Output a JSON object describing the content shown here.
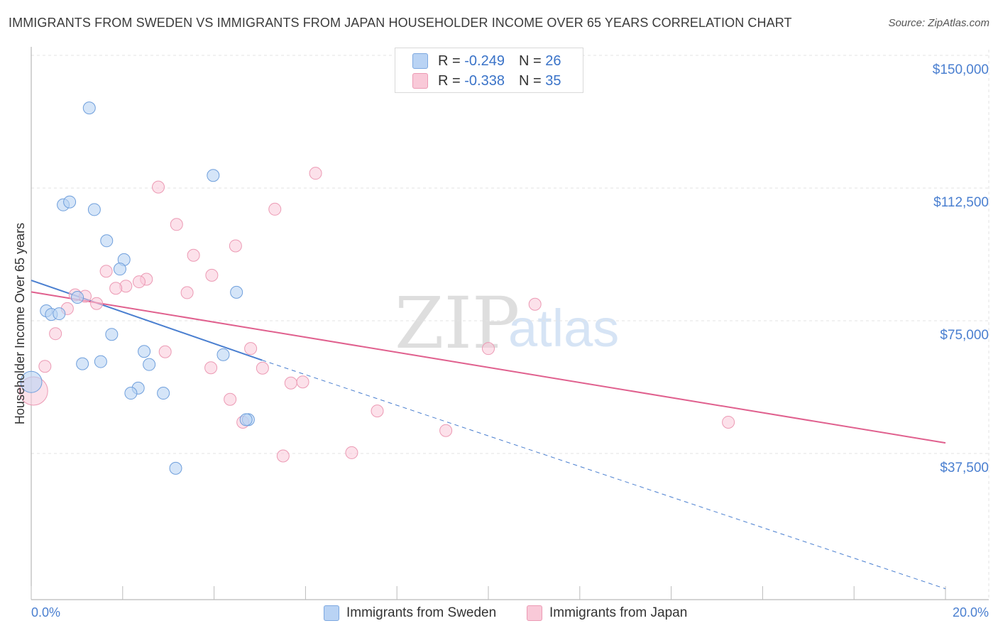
{
  "header": {
    "title": "IMMIGRANTS FROM SWEDEN VS IMMIGRANTS FROM JAPAN HOUSEHOLDER INCOME OVER 65 YEARS CORRELATION CHART",
    "source": "Source: ZipAtlas.com"
  },
  "watermark": {
    "zip": "ZIP",
    "atlas": "atlas"
  },
  "legend": {
    "sweden": {
      "r_label": "R =",
      "r_value": "-0.249",
      "n_label": "N =",
      "n_value": "26"
    },
    "japan": {
      "r_label": "R =",
      "r_value": "-0.338",
      "n_label": "N =",
      "n_value": "35"
    }
  },
  "chart_data": {
    "type": "scatter",
    "title": "IMMIGRANTS FROM SWEDEN VS IMMIGRANTS FROM JAPAN HOUSEHOLDER INCOME OVER 65 YEARS CORRELATION CHART",
    "xlabel": "",
    "ylabel": "Householder Income Over 65 years",
    "xlim": [
      0,
      20
    ],
    "ylim": [
      0,
      155000
    ],
    "x_tick_labels": [
      "0.0%",
      "20.0%"
    ],
    "y_ticks": [
      37500,
      75000,
      112500,
      150000
    ],
    "y_tick_labels": [
      "$37,500",
      "$75,000",
      "$112,500",
      "$150,000"
    ],
    "colors": {
      "sweden": "#4a7fd0",
      "sweden_fill": "#b9d3f4",
      "japan": "#e0608e",
      "japan_fill": "#f9c9d8",
      "axis_text": "#4a7fd0"
    },
    "series": [
      {
        "name": "Immigrants from Sweden",
        "points": [
          [
            1.27,
            135500
          ],
          [
            0.7,
            108800
          ],
          [
            0.84,
            109600
          ],
          [
            1.38,
            107500
          ],
          [
            1.65,
            98900
          ],
          [
            2.03,
            93700
          ],
          [
            1.94,
            91100
          ],
          [
            3.98,
            116900
          ],
          [
            4.49,
            84700
          ],
          [
            1.01,
            83300
          ],
          [
            0.33,
            79600
          ],
          [
            0.44,
            78600
          ],
          [
            0.61,
            78800
          ],
          [
            1.76,
            73100
          ],
          [
            2.47,
            68400
          ],
          [
            2.58,
            64800
          ],
          [
            1.12,
            65000
          ],
          [
            1.52,
            65600
          ],
          [
            4.2,
            67500
          ],
          [
            2.34,
            58300
          ],
          [
            2.18,
            56900
          ],
          [
            2.89,
            56900
          ],
          [
            0.0,
            60000
          ],
          [
            4.75,
            49600
          ],
          [
            3.16,
            36200
          ],
          [
            4.7,
            49600
          ]
        ],
        "sizes": [
          1,
          1,
          1,
          1,
          1,
          1,
          1,
          1,
          1,
          1,
          1,
          1,
          1,
          1,
          1,
          1,
          1,
          1,
          1,
          1,
          1,
          1,
          2,
          1,
          1,
          1
        ],
        "trend": {
          "x": [
            0,
            5.05
          ],
          "y": [
            88000,
            66000
          ]
        },
        "trend_extension": {
          "x": [
            5.05,
            20
          ],
          "y": [
            66000,
            3000
          ]
        }
      },
      {
        "name": "Immigrants from Japan",
        "points": [
          [
            6.22,
            117500
          ],
          [
            2.78,
            113700
          ],
          [
            5.33,
            107600
          ],
          [
            3.18,
            103400
          ],
          [
            4.47,
            97500
          ],
          [
            3.55,
            94900
          ],
          [
            1.64,
            90500
          ],
          [
            3.95,
            89400
          ],
          [
            2.52,
            88300
          ],
          [
            2.36,
            87600
          ],
          [
            2.07,
            86400
          ],
          [
            1.85,
            85800
          ],
          [
            3.41,
            84600
          ],
          [
            0.96,
            84000
          ],
          [
            1.18,
            83600
          ],
          [
            1.43,
            81600
          ],
          [
            0.79,
            80200
          ],
          [
            11.02,
            81400
          ],
          [
            0.53,
            73300
          ],
          [
            2.93,
            68300
          ],
          [
            4.8,
            69200
          ],
          [
            10.0,
            69200
          ],
          [
            0.3,
            64300
          ],
          [
            3.93,
            63900
          ],
          [
            5.06,
            63800
          ],
          [
            5.94,
            60000
          ],
          [
            5.68,
            59700
          ],
          [
            4.35,
            55200
          ],
          [
            7.57,
            52000
          ],
          [
            15.25,
            48900
          ],
          [
            9.07,
            46600
          ],
          [
            4.63,
            48900
          ],
          [
            7.01,
            40500
          ],
          [
            5.51,
            39600
          ],
          [
            0.05,
            57500
          ]
        ],
        "sizes": [
          1,
          1,
          1,
          1,
          1,
          1,
          1,
          1,
          1,
          1,
          1,
          1,
          1,
          1,
          1,
          1,
          1,
          1,
          1,
          1,
          1,
          1,
          1,
          1,
          1,
          1,
          1,
          1,
          1,
          1,
          1,
          1,
          1,
          1,
          3
        ],
        "trend": {
          "x": [
            0,
            20
          ],
          "y": [
            84800,
            43200
          ]
        }
      }
    ]
  },
  "bottom_legend": {
    "sweden_label": "Immigrants from Sweden",
    "japan_label": "Immigrants from Japan"
  }
}
